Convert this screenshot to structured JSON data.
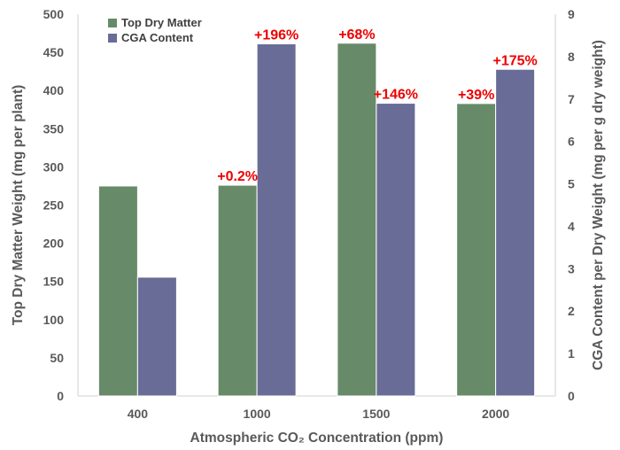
{
  "chart_data": {
    "type": "bar",
    "categories": [
      "400",
      "1000",
      "1500",
      "2000"
    ],
    "series": [
      {
        "name": "Top Dry Matter",
        "axis": "left",
        "color": "#678a68",
        "values": [
          275,
          276,
          462,
          383
        ],
        "annotations": [
          "",
          "+0.2%",
          "+68%",
          "+39%"
        ]
      },
      {
        "name": "CGA Content",
        "axis": "right",
        "color": "#686c96",
        "values": [
          2.8,
          8.3,
          6.9,
          7.7
        ],
        "annotations": [
          "",
          "+196%",
          "+146%",
          "+175%"
        ]
      }
    ],
    "xlabel": "Atmospheric CO₂ Concentration (ppm)",
    "ylabel": "Top Dry Matter Weight (mg per plant)",
    "y2label": "CGA Content per Dry Weight (mg per g dry weight)",
    "ylim": [
      0,
      500
    ],
    "yticks": [
      "0",
      "50",
      "100",
      "150",
      "200",
      "250",
      "300",
      "350",
      "400",
      "450",
      "500"
    ],
    "y2lim": [
      0,
      9
    ],
    "y2ticks": [
      "0",
      "1",
      "2",
      "3",
      "4",
      "5",
      "6",
      "7",
      "8",
      "9"
    ],
    "grid": false,
    "legend_position": "top-left",
    "annotation_color": "#ee0000"
  }
}
